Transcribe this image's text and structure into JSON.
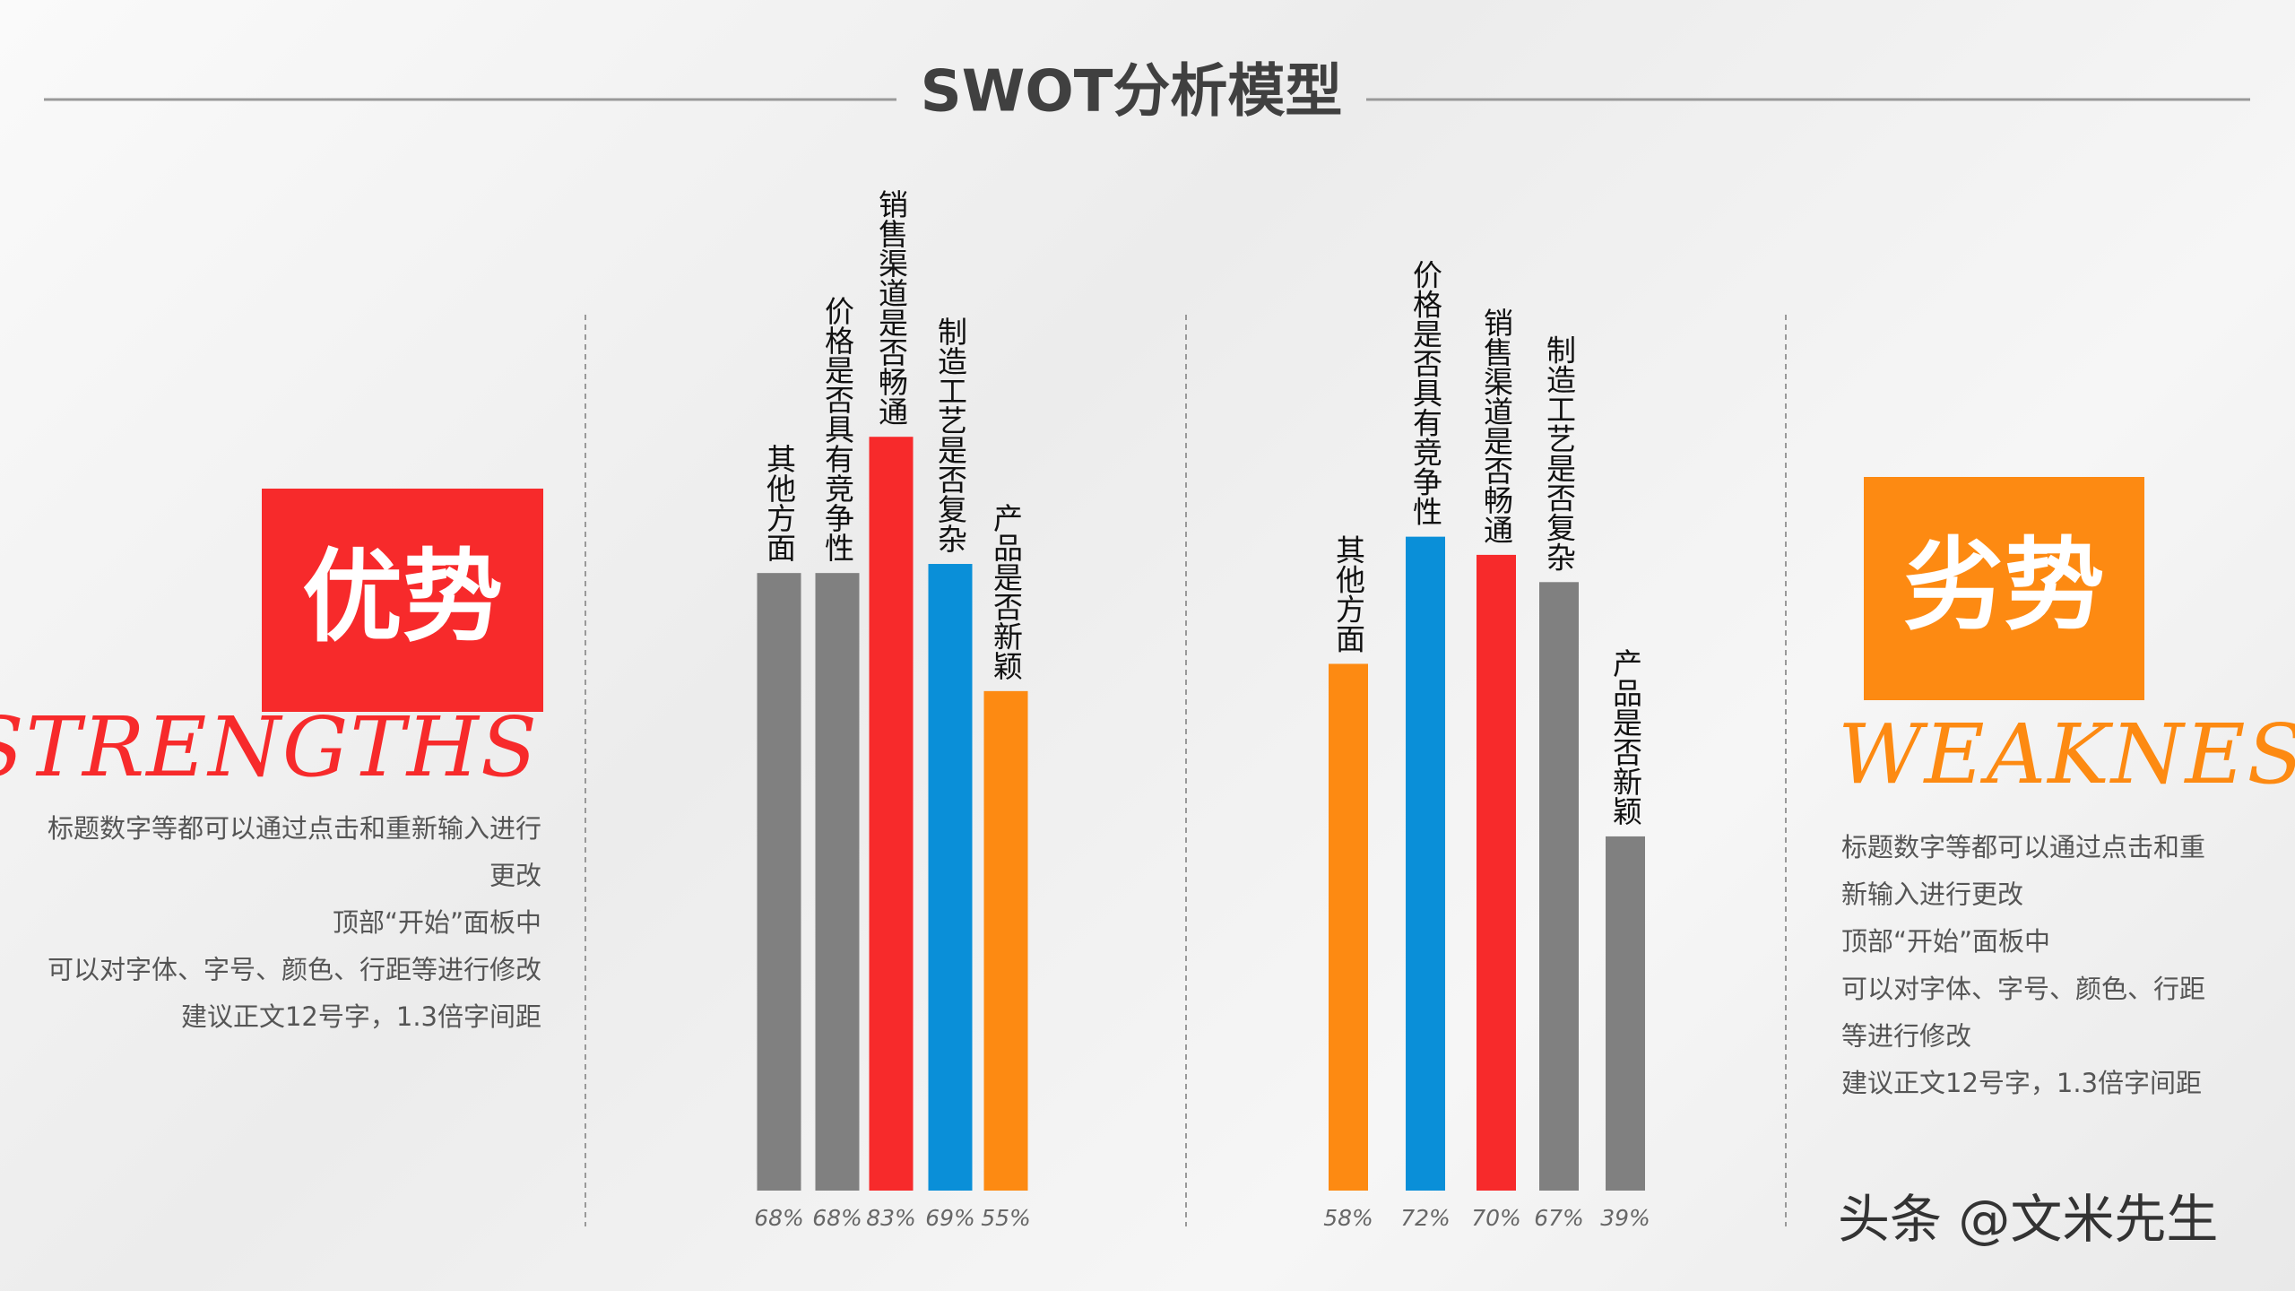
{
  "header": {
    "title": "SWOT分析模型"
  },
  "strengths": {
    "label": "优势",
    "english": "Strengths",
    "color": "#f72a2b",
    "lines": [
      "标题数字等都可以通过点击和重新输入进行",
      "更改",
      "顶部“开始”面板中",
      "可以对字体、字号、颜色、行距等进行修改",
      "建议正文12号字，1.3倍字间距"
    ]
  },
  "weaknesses": {
    "label": "劣势",
    "english": "Weaknesses",
    "color": "#fd8a12",
    "lines": [
      "标题数字等都可以通过点击和重",
      "新输入进行更改",
      "顶部“开始”面板中",
      "可以对字体、字号、颜色、行距",
      "等进行修改",
      "建议正文12号字，1.3倍字间距"
    ]
  },
  "watermark": "头条 @文米先生",
  "chart_data": [
    {
      "type": "bar",
      "categories": [
        "其他方面",
        "价格是否具有竞争性",
        "销售渠道是否畅通",
        "制造工艺是否复杂",
        "产品是否新颖"
      ],
      "values": [
        68,
        68,
        83,
        69,
        55
      ],
      "value_labels": [
        "68%",
        "68%",
        "83%",
        "69%",
        "55%"
      ],
      "colors": [
        "#808080",
        "#808080",
        "#f72a2b",
        "#0a8fd8",
        "#fd8a12"
      ],
      "ylim": [
        0,
        100
      ]
    },
    {
      "type": "bar",
      "categories": [
        "其他方面",
        "价格是否具有竞争性",
        "销售渠道是否畅通",
        "制造工艺是否复杂",
        "产品是否新颖"
      ],
      "values": [
        58,
        72,
        70,
        67,
        39
      ],
      "value_labels": [
        "58%",
        "72%",
        "70%",
        "67%",
        "39%"
      ],
      "colors": [
        "#fd8a12",
        "#0a8fd8",
        "#f72a2b",
        "#808080",
        "#808080"
      ],
      "ylim": [
        0,
        100
      ]
    }
  ]
}
